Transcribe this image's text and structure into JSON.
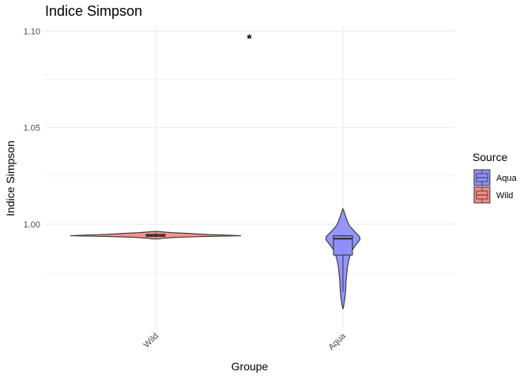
{
  "chart_data": {
    "type": "violin",
    "title": "Indice Simpson",
    "xlabel": "Groupe",
    "ylabel": "Indice Simpson",
    "ylim": [
      0.946,
      1.103
    ],
    "yticks": [
      1.0,
      1.05,
      1.1
    ],
    "ytick_labels": [
      "1.00",
      "1.05",
      "1.10"
    ],
    "categories": [
      "Wild",
      "Aqua"
    ],
    "grid": true,
    "legend": {
      "title": "Source",
      "position": "right",
      "entries": [
        {
          "label": "Aqua",
          "color": "#8f8ffb"
        },
        {
          "label": "Wild",
          "color": "#f88b86"
        }
      ]
    },
    "series": [
      {
        "category": "Wild",
        "source": "Wild",
        "color": "#f88b86",
        "violin": [
          [
            0.9923,
            0.03
          ],
          [
            0.9927,
            0.08
          ],
          [
            0.9932,
            0.25
          ],
          [
            0.9936,
            0.55
          ],
          [
            0.994,
            1.0
          ],
          [
            0.9944,
            0.8
          ],
          [
            0.9948,
            0.55
          ],
          [
            0.9952,
            0.4
          ],
          [
            0.9956,
            0.2
          ],
          [
            0.996,
            0.08
          ],
          [
            0.9962,
            0.02
          ]
        ],
        "box": {
          "q1": 0.9937,
          "median": 0.9941,
          "q3": 0.9947,
          "whisker_low": 0.993,
          "whisker_high": 0.9955
        }
      },
      {
        "category": "Aqua",
        "source": "Aqua",
        "color": "#8f8ffb",
        "violin": [
          [
            0.956,
            0.0
          ],
          [
            0.958,
            0.05
          ],
          [
            0.962,
            0.12
          ],
          [
            0.966,
            0.16
          ],
          [
            0.97,
            0.18
          ],
          [
            0.974,
            0.22
          ],
          [
            0.978,
            0.27
          ],
          [
            0.982,
            0.36
          ],
          [
            0.986,
            0.5
          ],
          [
            0.988,
            0.65
          ],
          [
            0.99,
            0.82
          ],
          [
            0.992,
            1.0
          ],
          [
            0.9935,
            0.98
          ],
          [
            0.995,
            0.82
          ],
          [
            0.997,
            0.6
          ],
          [
            0.999,
            0.4
          ],
          [
            1.001,
            0.28
          ],
          [
            1.003,
            0.2
          ],
          [
            1.005,
            0.12
          ],
          [
            1.007,
            0.05
          ],
          [
            1.008,
            0.0
          ]
        ],
        "box": {
          "q1": 0.984,
          "median": 0.9925,
          "q3": 0.994,
          "whisker_low": 0.965,
          "whisker_high": 0.9945
        }
      }
    ],
    "annotations": [
      {
        "text": "*",
        "x_between": [
          "Wild",
          "Aqua"
        ],
        "y": 1.097
      }
    ]
  }
}
